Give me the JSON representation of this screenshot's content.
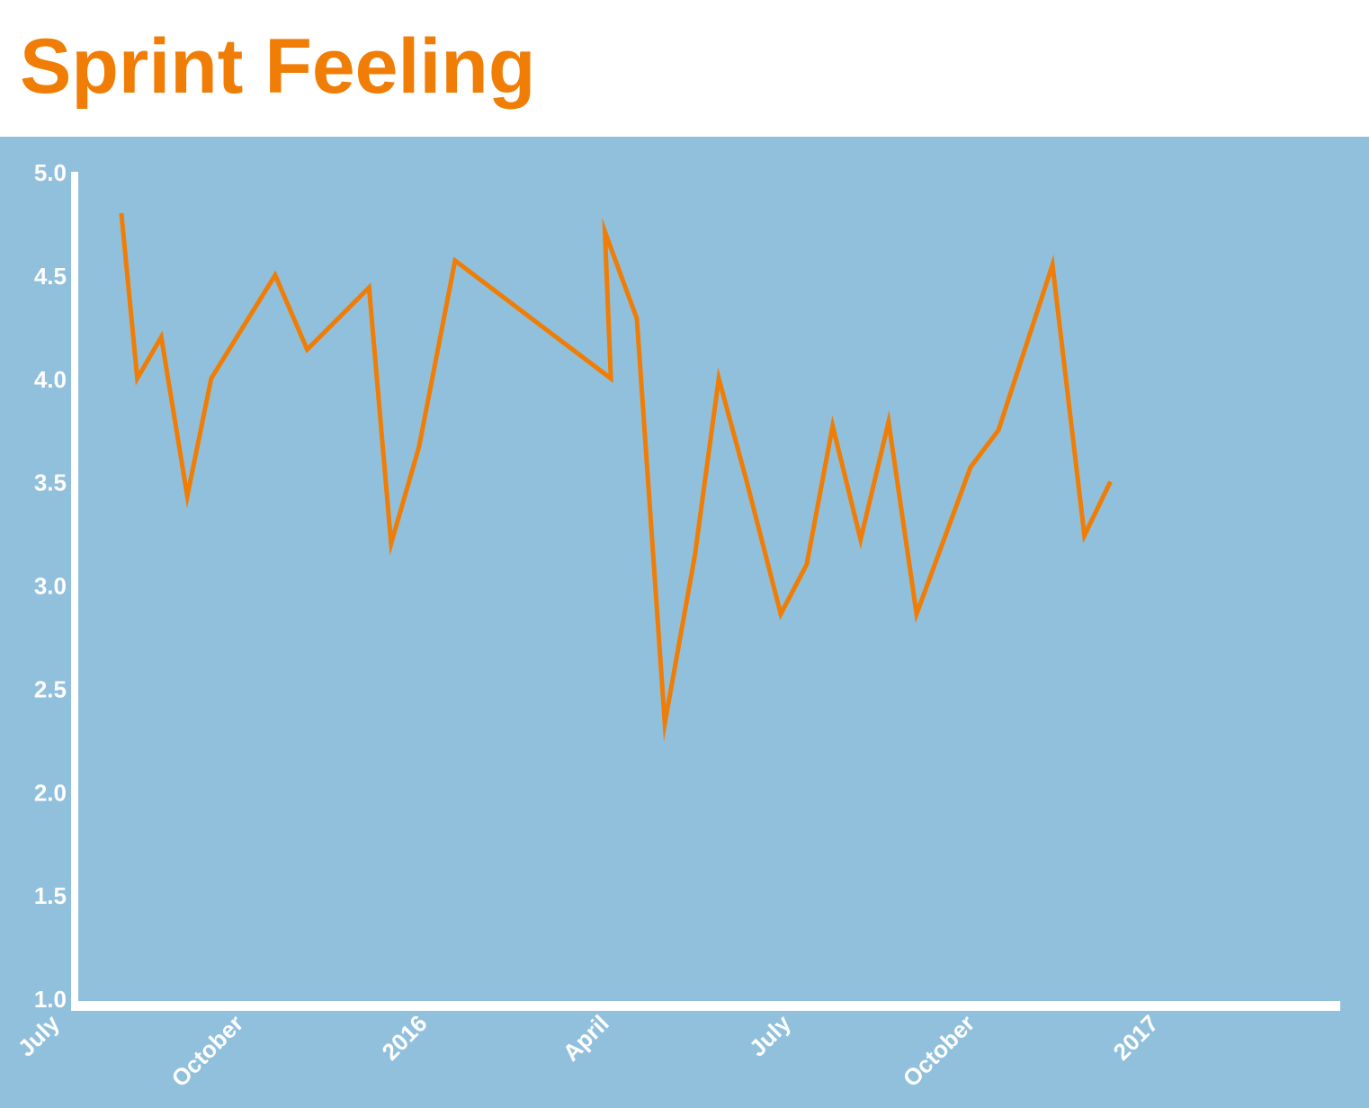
{
  "colors": {
    "title": "#f07d05",
    "background": "#91c0dc",
    "line": "#f07d05",
    "axis": "#ffffff",
    "tick_text": "#ffffff"
  },
  "chart_data": {
    "type": "line",
    "title": "Sprint Feeling",
    "xlabel": "",
    "ylabel": "",
    "ylim": [
      1.0,
      5.0
    ],
    "xlim": [
      "2015-07-01",
      "2017-03-24"
    ],
    "grid": false,
    "legend": "none",
    "y_ticks": [
      "1.0",
      "1.5",
      "2.0",
      "2.5",
      "3.0",
      "3.5",
      "4.0",
      "4.5",
      "5.0"
    ],
    "x_ticks": [
      {
        "date": "2015-07-01",
        "label": "July"
      },
      {
        "date": "2015-10-01",
        "label": "October"
      },
      {
        "date": "2016-01-01",
        "label": "2016"
      },
      {
        "date": "2016-04-01",
        "label": "April"
      },
      {
        "date": "2016-07-01",
        "label": "July"
      },
      {
        "date": "2016-10-01",
        "label": "October"
      },
      {
        "date": "2017-01-01",
        "label": "2017"
      }
    ],
    "series": [
      {
        "points": [
          {
            "x": "2015-07-23",
            "y": 4.8
          },
          {
            "x": "2015-07-31",
            "y": 4.0
          },
          {
            "x": "2015-08-12",
            "y": 4.2
          },
          {
            "x": "2015-08-25",
            "y": 3.43
          },
          {
            "x": "2015-09-06",
            "y": 4.0
          },
          {
            "x": "2015-10-08",
            "y": 4.5
          },
          {
            "x": "2015-10-24",
            "y": 4.14
          },
          {
            "x": "2015-11-24",
            "y": 4.44
          },
          {
            "x": "2015-12-05",
            "y": 3.2
          },
          {
            "x": "2015-12-19",
            "y": 3.67
          },
          {
            "x": "2016-01-06",
            "y": 4.57
          },
          {
            "x": "2016-03-24",
            "y": 4.0
          },
          {
            "x": "2016-03-21",
            "y": 4.71
          },
          {
            "x": "2016-04-06",
            "y": 4.29
          },
          {
            "x": "2016-04-20",
            "y": 2.33
          },
          {
            "x": "2016-05-05",
            "y": 3.14
          },
          {
            "x": "2016-05-17",
            "y": 4.0
          },
          {
            "x": "2016-05-31",
            "y": 3.5
          },
          {
            "x": "2016-06-17",
            "y": 2.86
          },
          {
            "x": "2016-06-30",
            "y": 3.1
          },
          {
            "x": "2016-07-13",
            "y": 3.77
          },
          {
            "x": "2016-07-27",
            "y": 3.22
          },
          {
            "x": "2016-08-10",
            "y": 3.79
          },
          {
            "x": "2016-08-24",
            "y": 2.86
          },
          {
            "x": "2016-09-20",
            "y": 3.57
          },
          {
            "x": "2016-10-04",
            "y": 3.75
          },
          {
            "x": "2016-10-31",
            "y": 4.55
          },
          {
            "x": "2016-11-16",
            "y": 3.24
          },
          {
            "x": "2016-11-29",
            "y": 3.5
          }
        ]
      }
    ]
  }
}
